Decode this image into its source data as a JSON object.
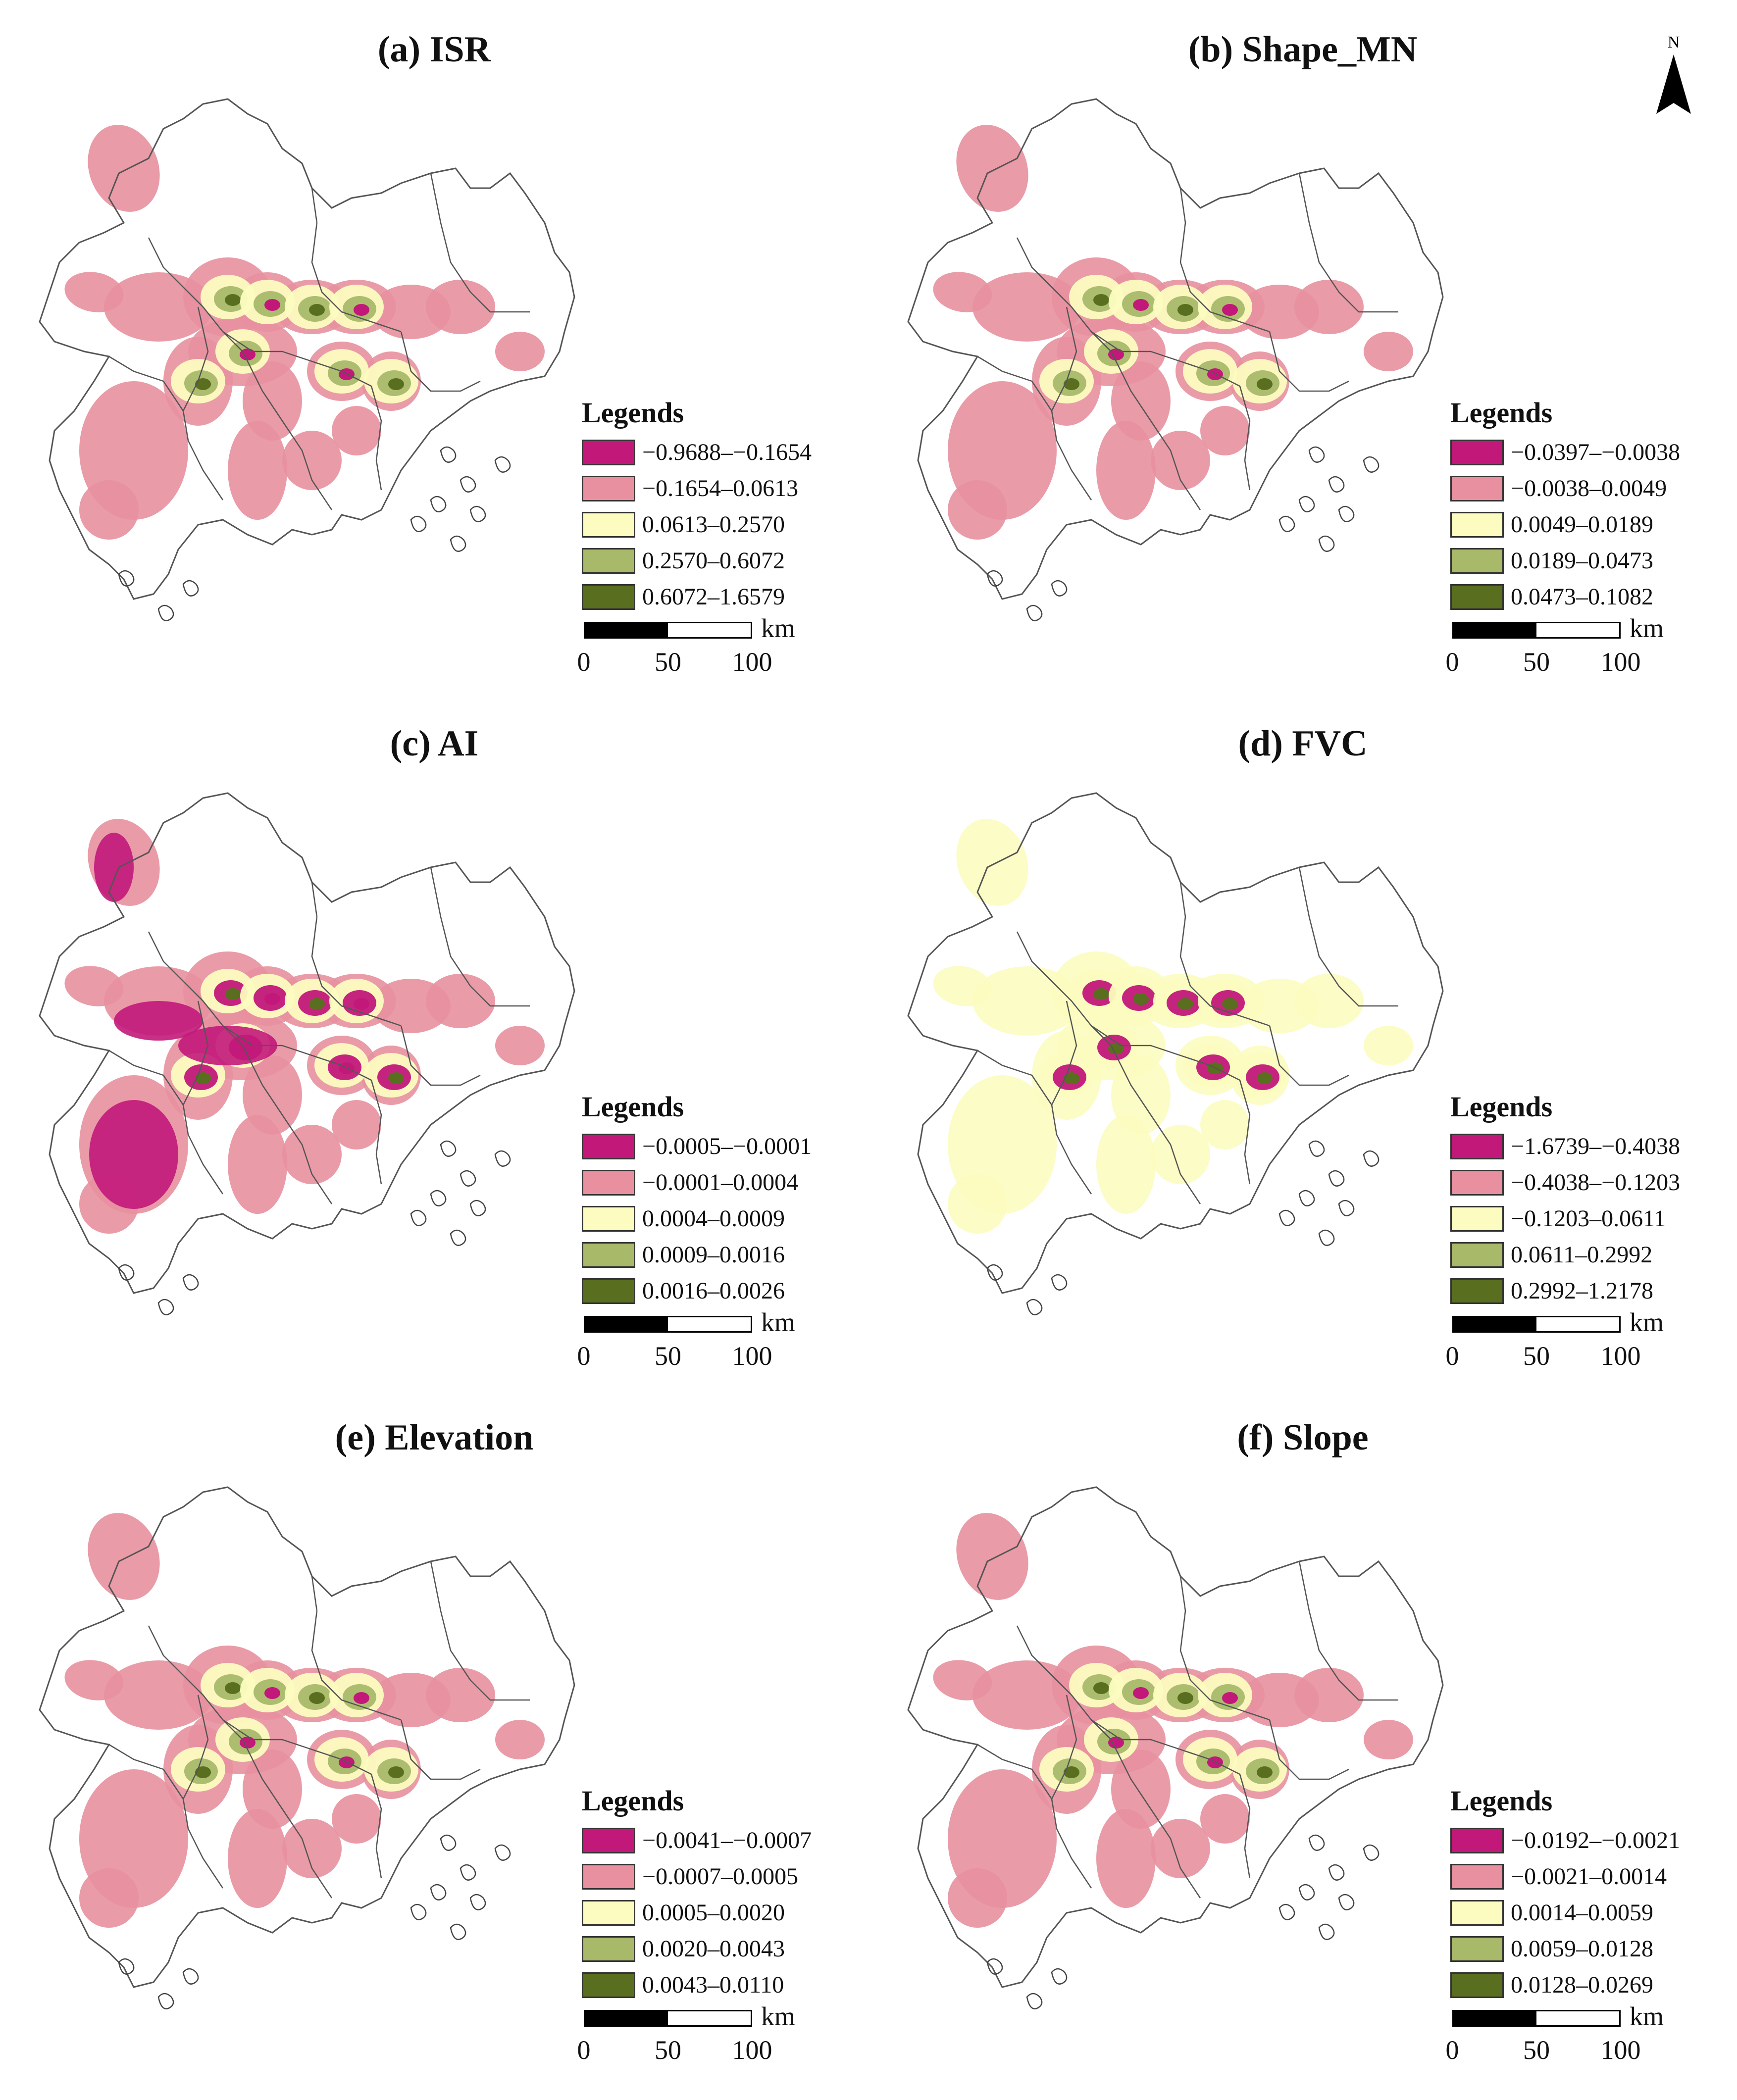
{
  "north_arrow": {
    "label": "N"
  },
  "map_style": {
    "boundary_color": "#555555",
    "background": "#ffffff"
  },
  "panels": [
    {
      "title": "(a) ISR",
      "legend_title": "Legends",
      "classes": [
        {
          "label": "−0.9688–−0.1654",
          "color": "#c2187a"
        },
        {
          "label": "−0.1654–0.0613",
          "color": "#e8909f"
        },
        {
          "label": "0.0613–0.2570",
          "color": "#fcfcc0"
        },
        {
          "label": "0.2570–0.6072",
          "color": "#a8b96a"
        },
        {
          "label": "0.6072–1.6579",
          "color": "#5a6e1f"
        }
      ],
      "scale": {
        "unit": "km",
        "ticks": [
          "0",
          "50",
          "100"
        ]
      }
    },
    {
      "title": "(b) Shape_MN",
      "legend_title": "Legends",
      "classes": [
        {
          "label": "−0.0397–−0.0038",
          "color": "#c2187a"
        },
        {
          "label": "−0.0038–0.0049",
          "color": "#e8909f"
        },
        {
          "label": "0.0049–0.0189",
          "color": "#fcfcc0"
        },
        {
          "label": "0.0189–0.0473",
          "color": "#a8b96a"
        },
        {
          "label": "0.0473–0.1082",
          "color": "#5a6e1f"
        }
      ],
      "scale": {
        "unit": "km",
        "ticks": [
          "0",
          "50",
          "100"
        ]
      }
    },
    {
      "title": "(c) AI",
      "legend_title": "Legends",
      "classes": [
        {
          "label": "−0.0005–−0.0001",
          "color": "#c2187a"
        },
        {
          "label": "−0.0001–0.0004",
          "color": "#e8909f"
        },
        {
          "label": "0.0004–0.0009",
          "color": "#fcfcc0"
        },
        {
          "label": "0.0009–0.0016",
          "color": "#a8b96a"
        },
        {
          "label": "0.0016–0.0026",
          "color": "#5a6e1f"
        }
      ],
      "scale": {
        "unit": "km",
        "ticks": [
          "0",
          "50",
          "100"
        ]
      }
    },
    {
      "title": "(d) FVC",
      "legend_title": "Legends",
      "classes": [
        {
          "label": "−1.6739–−0.4038",
          "color": "#c2187a"
        },
        {
          "label": "−0.4038–−0.1203",
          "color": "#e8909f"
        },
        {
          "label": "−0.1203–0.0611",
          "color": "#fcfcc0"
        },
        {
          "label": "0.0611–0.2992",
          "color": "#a8b96a"
        },
        {
          "label": "0.2992–1.2178",
          "color": "#5a6e1f"
        }
      ],
      "scale": {
        "unit": "km",
        "ticks": [
          "0",
          "50",
          "100"
        ]
      }
    },
    {
      "title": "(e) Elevation",
      "legend_title": "Legends",
      "classes": [
        {
          "label": "−0.0041–−0.0007",
          "color": "#c2187a"
        },
        {
          "label": "−0.0007–0.0005",
          "color": "#e8909f"
        },
        {
          "label": "0.0005–0.0020",
          "color": "#fcfcc0"
        },
        {
          "label": "0.0020–0.0043",
          "color": "#a8b96a"
        },
        {
          "label": "0.0043–0.0110",
          "color": "#5a6e1f"
        }
      ],
      "scale": {
        "unit": "km",
        "ticks": [
          "0",
          "50",
          "100"
        ]
      }
    },
    {
      "title": "(f) Slope",
      "legend_title": "Legends",
      "classes": [
        {
          "label": "−0.0192–−0.0021",
          "color": "#c2187a"
        },
        {
          "label": "−0.0021–0.0014",
          "color": "#e8909f"
        },
        {
          "label": "0.0014–0.0059",
          "color": "#fcfcc0"
        },
        {
          "label": "0.0059–0.0128",
          "color": "#a8b96a"
        },
        {
          "label": "0.0128–0.0269",
          "color": "#5a6e1f"
        }
      ],
      "scale": {
        "unit": "km",
        "ticks": [
          "0",
          "50",
          "100"
        ]
      }
    }
  ]
}
